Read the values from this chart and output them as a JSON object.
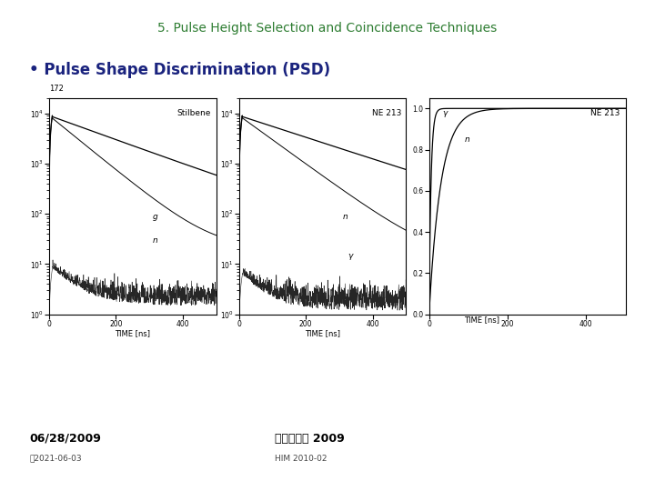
{
  "title": "5. Pulse Height Selection and Coincidence Techniques",
  "title_color": "#2E7D32",
  "bullet": "• Pulse Shape Discrimination (PSD)",
  "bullet_color": "#1a237e",
  "background_color": "#ffffff",
  "date_left": "06/28/2009",
  "date_left_sub": "숢2021-06-03",
  "date_center": "핵물리학교 2009",
  "date_center_sub": "HIM 2010-02",
  "plot1_label": "Stilbene",
  "plot2_label": "NE 213",
  "plot3_label": "NE 213",
  "xlabel12": "TIME [ns]",
  "xlabel3": "TIME [ns]"
}
